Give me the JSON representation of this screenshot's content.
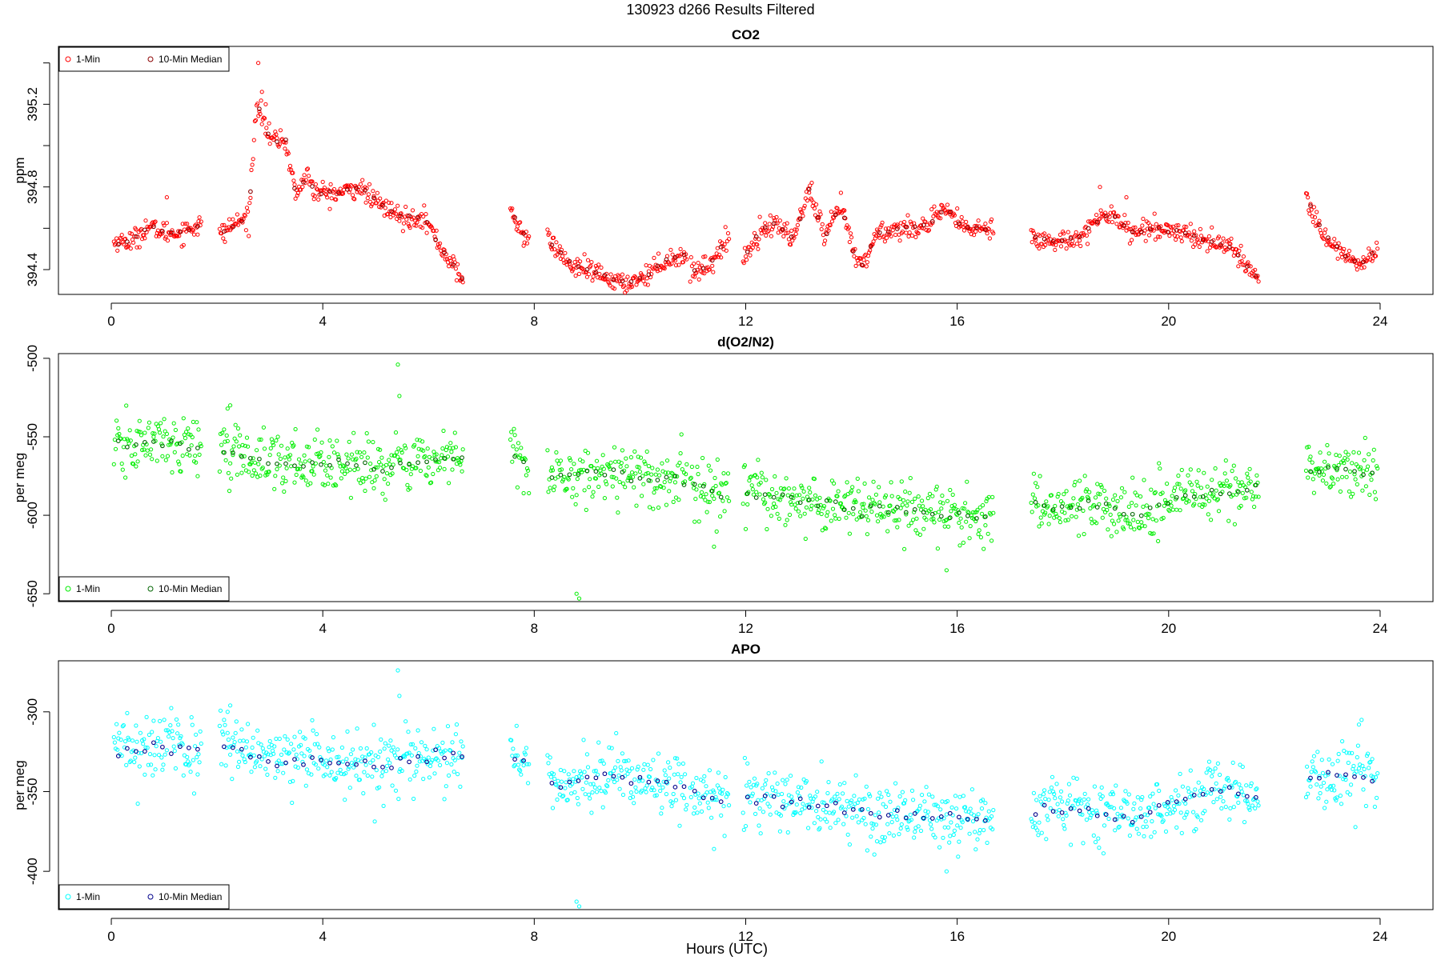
{
  "figure": {
    "title": "130923   d266   Results Filtered",
    "xlabel": "Hours (UTC)"
  },
  "chart_data": [
    {
      "type": "scatter",
      "title": "CO2",
      "xlabel": "",
      "ylabel": "ppm",
      "xlim": [
        -1.0,
        25.0
      ],
      "ylim": [
        394.28,
        395.48
      ],
      "xticks": [
        0,
        4,
        8,
        12,
        16,
        20,
        24
      ],
      "yticks": [
        394.4,
        394.6,
        394.8,
        395.0,
        395.2,
        395.4
      ],
      "ytick_labels": [
        "394.4",
        "",
        "394.8",
        "",
        "395.2",
        ""
      ],
      "legend_position": "top-left",
      "legend": [
        "1-Min",
        "10-Min Median"
      ],
      "colors": {
        "one_min": "#ff0000",
        "median": "#8b0000"
      },
      "grid": false,
      "segments": [
        [
          0.05,
          1.7
        ],
        [
          2.05,
          6.65
        ],
        [
          7.55,
          7.9
        ],
        [
          8.25,
          10.9
        ],
        [
          10.95,
          11.7
        ],
        [
          11.95,
          16.7
        ],
        [
          17.4,
          21.7
        ],
        [
          22.6,
          23.95
        ]
      ],
      "profile": [
        [
          0.05,
          394.53
        ],
        [
          0.4,
          394.54
        ],
        [
          0.7,
          394.61
        ],
        [
          1.0,
          394.58
        ],
        [
          1.3,
          394.58
        ],
        [
          1.7,
          394.62
        ],
        [
          2.05,
          394.57
        ],
        [
          2.4,
          394.63
        ],
        [
          2.6,
          394.65
        ],
        [
          2.75,
          395.22
        ],
        [
          3.0,
          395.03
        ],
        [
          3.3,
          395.02
        ],
        [
          3.5,
          394.75
        ],
        [
          3.7,
          394.87
        ],
        [
          3.85,
          394.77
        ],
        [
          4.3,
          394.77
        ],
        [
          4.7,
          394.8
        ],
        [
          5.0,
          394.73
        ],
        [
          5.5,
          394.65
        ],
        [
          5.9,
          394.66
        ],
        [
          6.2,
          394.52
        ],
        [
          6.65,
          394.35
        ],
        [
          7.55,
          394.68
        ],
        [
          7.9,
          394.53
        ],
        [
          8.25,
          394.55
        ],
        [
          8.7,
          394.42
        ],
        [
          9.2,
          394.38
        ],
        [
          9.7,
          394.33
        ],
        [
          10.1,
          394.37
        ],
        [
          10.5,
          394.45
        ],
        [
          10.9,
          394.47
        ],
        [
          10.95,
          394.39
        ],
        [
          11.3,
          394.42
        ],
        [
          11.7,
          394.56
        ],
        [
          11.95,
          394.45
        ],
        [
          12.3,
          394.6
        ],
        [
          12.6,
          394.62
        ],
        [
          12.9,
          394.55
        ],
        [
          13.2,
          394.78
        ],
        [
          13.5,
          394.55
        ],
        [
          13.8,
          394.72
        ],
        [
          14.05,
          394.47
        ],
        [
          14.2,
          394.42
        ],
        [
          14.5,
          394.58
        ],
        [
          15.0,
          394.6
        ],
        [
          15.5,
          394.62
        ],
        [
          15.8,
          394.7
        ],
        [
          16.1,
          394.6
        ],
        [
          16.7,
          394.6
        ],
        [
          17.4,
          394.57
        ],
        [
          17.8,
          394.53
        ],
        [
          18.2,
          394.55
        ],
        [
          18.6,
          394.62
        ],
        [
          18.9,
          394.68
        ],
        [
          19.3,
          394.58
        ],
        [
          19.8,
          394.6
        ],
        [
          20.3,
          394.58
        ],
        [
          20.7,
          394.54
        ],
        [
          21.1,
          394.52
        ],
        [
          21.4,
          394.44
        ],
        [
          21.7,
          394.36
        ],
        [
          22.6,
          394.75
        ],
        [
          22.9,
          394.58
        ],
        [
          23.3,
          394.48
        ],
        [
          23.6,
          394.42
        ],
        [
          23.95,
          394.5
        ]
      ],
      "spike_points": [
        [
          2.78,
          395.4
        ],
        [
          2.85,
          395.26
        ],
        [
          2.92,
          395.2
        ],
        [
          1.05,
          394.75
        ],
        [
          13.25,
          394.82
        ],
        [
          18.7,
          394.8
        ],
        [
          19.2,
          394.75
        ]
      ],
      "noise": 0.025
    },
    {
      "type": "scatter",
      "title": "d(O2/N2)",
      "xlabel": "",
      "ylabel": "per meg",
      "xlim": [
        -1.0,
        25.0
      ],
      "ylim": [
        -655.0,
        -497.0
      ],
      "xticks": [
        0,
        4,
        8,
        12,
        16,
        20,
        24
      ],
      "yticks": [
        -650,
        -600,
        -550,
        -500
      ],
      "ytick_labels": [
        "-650",
        "-600",
        "-550",
        "-500"
      ],
      "legend_position": "bottom-left",
      "legend": [
        "1-Min",
        "10-Min Median"
      ],
      "colors": {
        "one_min": "#00ee00",
        "median": "#006400"
      },
      "grid": false,
      "segments": [
        [
          0.05,
          1.7
        ],
        [
          2.05,
          6.65
        ],
        [
          7.55,
          7.9
        ],
        [
          8.25,
          10.9
        ],
        [
          10.95,
          11.7
        ],
        [
          11.95,
          16.7
        ],
        [
          17.4,
          21.7
        ],
        [
          22.6,
          23.95
        ]
      ],
      "profile": [
        [
          0.05,
          -557.0
        ],
        [
          1.0,
          -553.0
        ],
        [
          1.7,
          -558.0
        ],
        [
          2.05,
          -558.0
        ],
        [
          3.0,
          -566.0
        ],
        [
          4.0,
          -566.0
        ],
        [
          5.0,
          -570.0
        ],
        [
          6.0,
          -565.0
        ],
        [
          6.65,
          -563.0
        ],
        [
          7.55,
          -560.0
        ],
        [
          7.9,
          -568.0
        ],
        [
          8.25,
          -575.0
        ],
        [
          9.5,
          -572.0
        ],
        [
          10.5,
          -578.0
        ],
        [
          10.9,
          -578.0
        ],
        [
          10.95,
          -580.0
        ],
        [
          11.7,
          -590.0
        ],
        [
          11.95,
          -585.0
        ],
        [
          13.0,
          -590.0
        ],
        [
          14.0,
          -595.0
        ],
        [
          15.0,
          -597.0
        ],
        [
          16.0,
          -600.0
        ],
        [
          16.7,
          -603.0
        ],
        [
          17.4,
          -595.0
        ],
        [
          18.5,
          -593.0
        ],
        [
          19.3,
          -600.0
        ],
        [
          20.0,
          -590.0
        ],
        [
          21.0,
          -585.0
        ],
        [
          21.7,
          -582.0
        ],
        [
          22.6,
          -572.0
        ],
        [
          23.95,
          -573.0
        ]
      ],
      "spike_points": [
        [
          2.2,
          -532.0
        ],
        [
          2.25,
          -530.0
        ],
        [
          5.42,
          -504.0
        ],
        [
          5.45,
          -524.0
        ],
        [
          8.8,
          -650.0
        ],
        [
          8.85,
          -653.0
        ],
        [
          11.4,
          -620.0
        ],
        [
          15.8,
          -635.0
        ]
      ],
      "noise": 9.0
    },
    {
      "type": "scatter",
      "title": "APO",
      "xlabel": "Hours (UTC)",
      "ylabel": "per meg",
      "xlim": [
        -1.0,
        25.0
      ],
      "ylim": [
        -424.0,
        -268.0
      ],
      "xticks": [
        0,
        4,
        8,
        12,
        16,
        20,
        24
      ],
      "yticks": [
        -400,
        -350,
        -300
      ],
      "ytick_labels": [
        "-400",
        "-350",
        "-300"
      ],
      "legend_position": "bottom-left",
      "legend": [
        "1-Min",
        "10-Min Median"
      ],
      "colors": {
        "one_min": "#00ffff",
        "median": "#00008b"
      },
      "grid": false,
      "segments": [
        [
          0.05,
          1.7
        ],
        [
          2.05,
          6.65
        ],
        [
          7.55,
          7.9
        ],
        [
          8.25,
          10.9
        ],
        [
          10.95,
          11.7
        ],
        [
          11.95,
          16.7
        ],
        [
          17.4,
          21.7
        ],
        [
          22.6,
          23.95
        ]
      ],
      "profile": [
        [
          0.05,
          -324.0
        ],
        [
          1.0,
          -320.0
        ],
        [
          1.7,
          -325.0
        ],
        [
          2.05,
          -322.0
        ],
        [
          3.0,
          -330.0
        ],
        [
          4.0,
          -330.0
        ],
        [
          5.0,
          -335.0
        ],
        [
          6.0,
          -330.0
        ],
        [
          6.65,
          -328.0
        ],
        [
          7.55,
          -326.0
        ],
        [
          7.9,
          -335.0
        ],
        [
          8.25,
          -345.0
        ],
        [
          9.5,
          -340.0
        ],
        [
          10.5,
          -345.0
        ],
        [
          10.9,
          -348.0
        ],
        [
          10.95,
          -350.0
        ],
        [
          11.7,
          -358.0
        ],
        [
          11.95,
          -352.0
        ],
        [
          13.0,
          -356.0
        ],
        [
          14.0,
          -360.0
        ],
        [
          15.0,
          -365.0
        ],
        [
          16.0,
          -368.0
        ],
        [
          16.7,
          -368.0
        ],
        [
          17.4,
          -363.0
        ],
        [
          18.5,
          -362.0
        ],
        [
          19.3,
          -368.0
        ],
        [
          20.0,
          -356.0
        ],
        [
          21.0,
          -350.0
        ],
        [
          21.7,
          -352.0
        ],
        [
          22.6,
          -338.0
        ],
        [
          23.95,
          -340.0
        ]
      ],
      "spike_points": [
        [
          2.2,
          -300.0
        ],
        [
          2.25,
          -296.0
        ],
        [
          5.42,
          -274.0
        ],
        [
          5.45,
          -290.0
        ],
        [
          8.8,
          -419.0
        ],
        [
          8.85,
          -422.0
        ],
        [
          11.4,
          -386.0
        ],
        [
          15.8,
          -400.0
        ],
        [
          23.6,
          -308.0
        ]
      ],
      "noise": 10.0
    }
  ]
}
